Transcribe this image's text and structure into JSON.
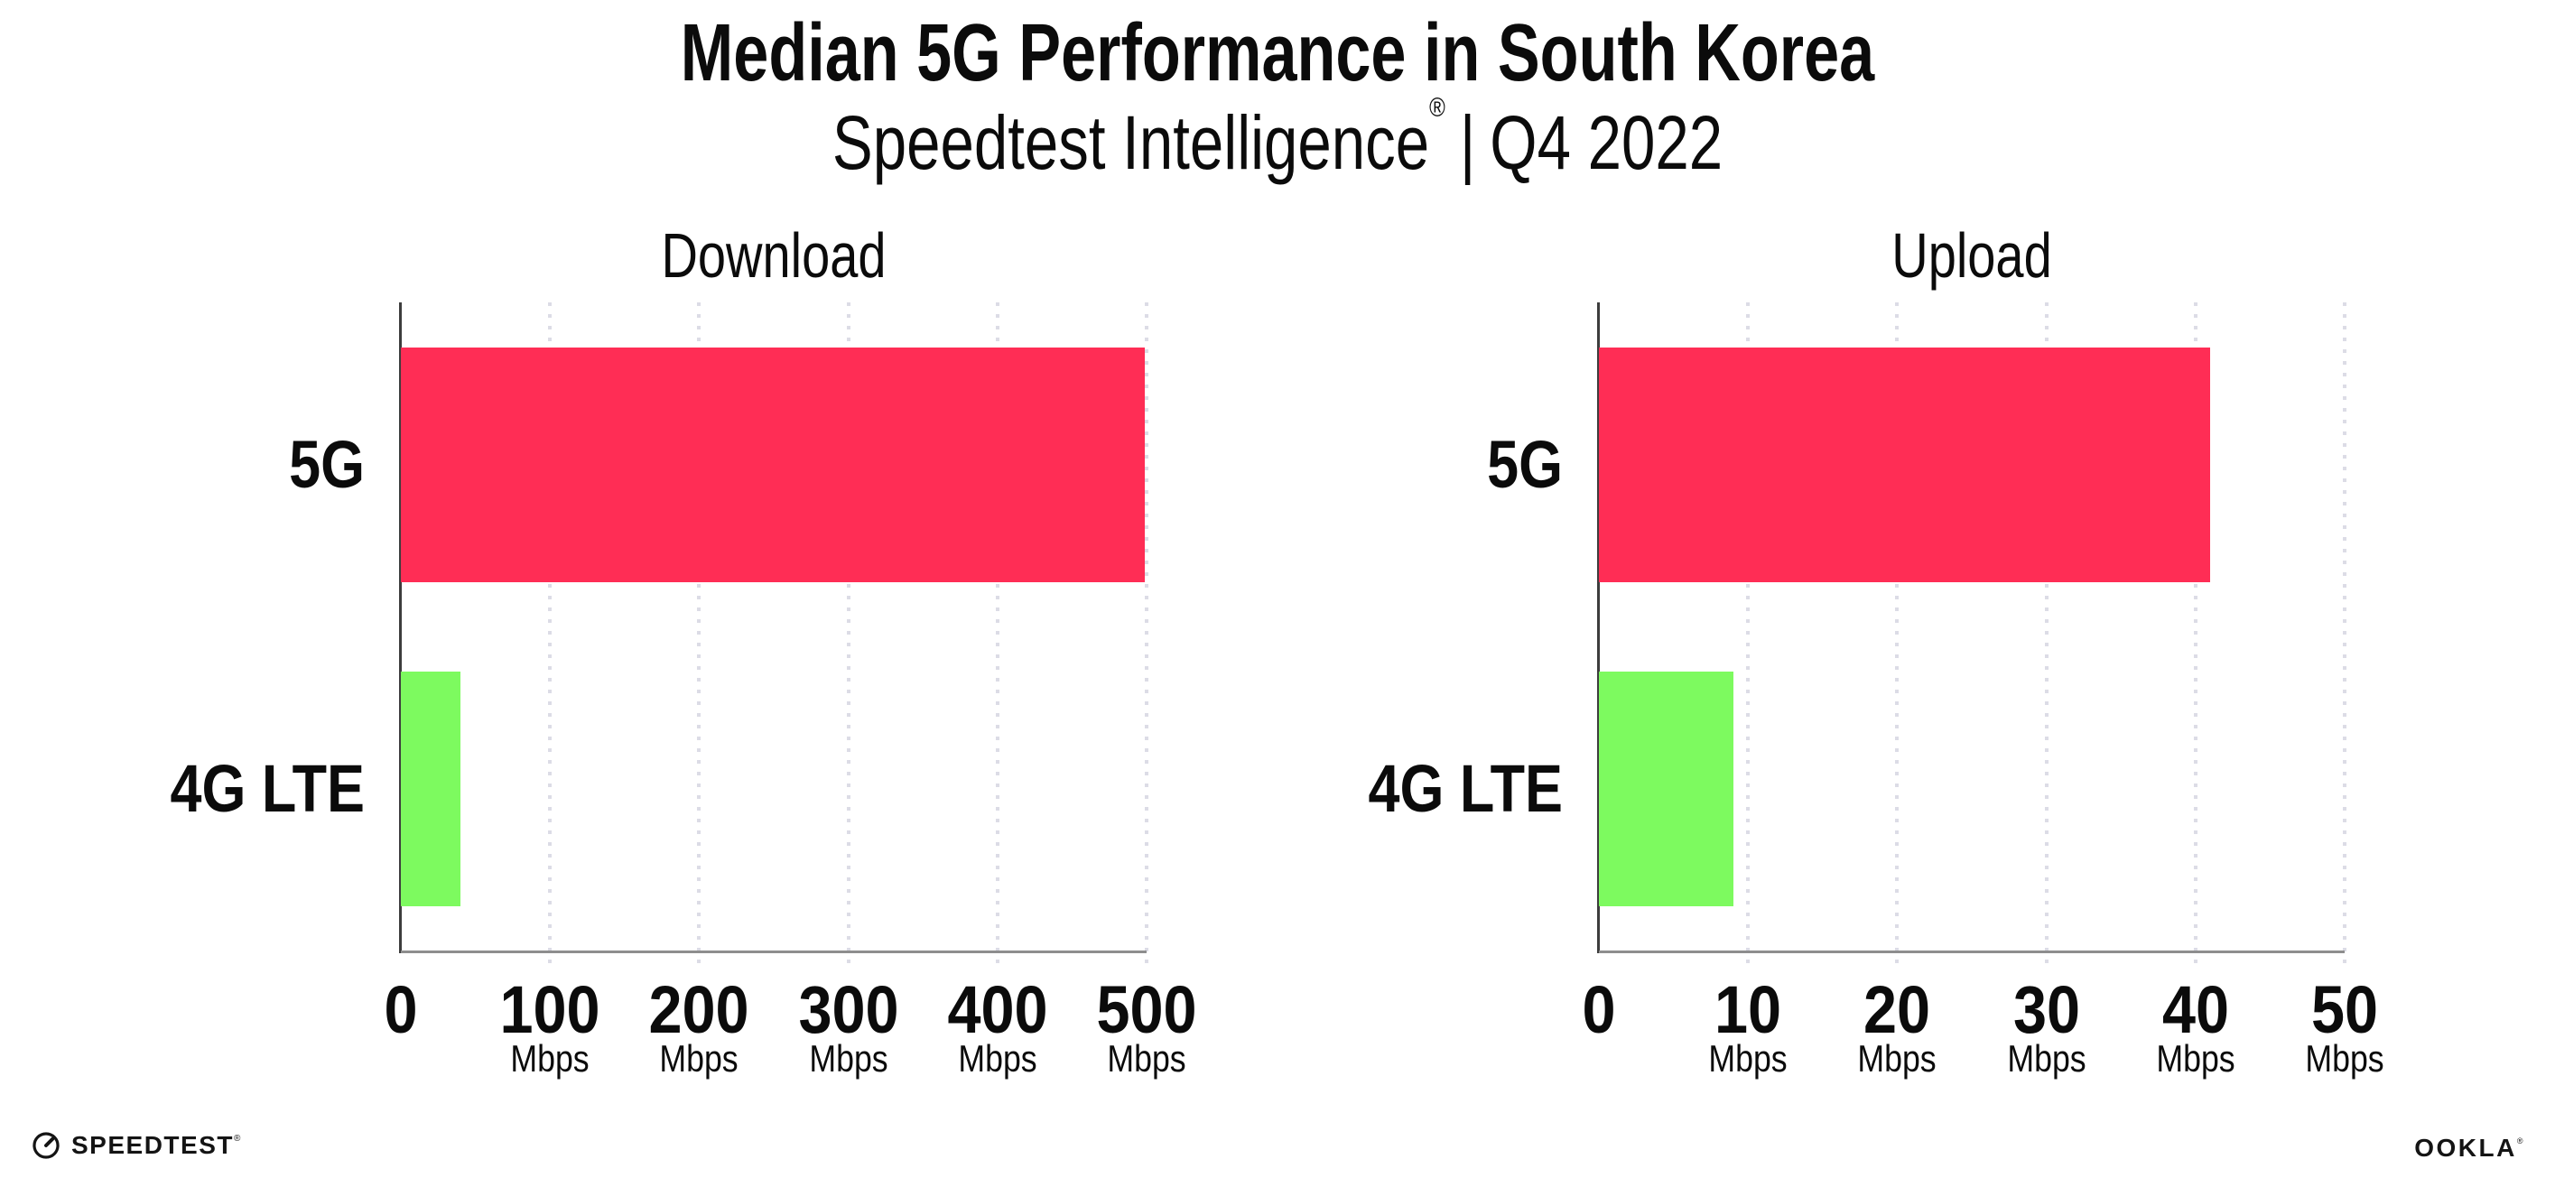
{
  "header": {
    "title": "Median 5G Performance in South Korea",
    "subtitle_brand": "Speedtest Intelligence",
    "subtitle_reg": "®",
    "subtitle_separator": "|",
    "subtitle_period": "Q4 2022"
  },
  "footer": {
    "speedtest_logo_text": "SPEEDTEST",
    "speedtest_reg": "®",
    "ookla_logo_text": "OOKLA",
    "ookla_reg": "®"
  },
  "colors": {
    "bar_5g": "#ff2d55",
    "bar_4g_lte": "#7dfa5f",
    "gridline": "#dcdce6",
    "x_axis_line": "#8e8e8e",
    "y_axis_spine": "#3d3d3d",
    "text": "#0b0b0b"
  },
  "chart_data": [
    {
      "type": "bar",
      "orientation": "horizontal",
      "title": "Download",
      "categories": [
        "5G",
        "4G LTE"
      ],
      "values": [
        499,
        40
      ],
      "unit": "Mbps",
      "tick_unit": "Mbps",
      "xlim": [
        0,
        500
      ],
      "xticks": [
        0,
        100,
        200,
        300,
        400,
        500
      ],
      "bar_colors": [
        "#ff2d55",
        "#7dfa5f"
      ],
      "grid": "vertical-dotted",
      "legend": "none"
    },
    {
      "type": "bar",
      "orientation": "horizontal",
      "title": "Upload",
      "categories": [
        "5G",
        "4G LTE"
      ],
      "values": [
        41,
        9
      ],
      "unit": "Mbps",
      "tick_unit": "Mbps",
      "xlim": [
        0,
        50
      ],
      "xticks": [
        0,
        10,
        20,
        30,
        40,
        50
      ],
      "bar_colors": [
        "#ff2d55",
        "#7dfa5f"
      ],
      "grid": "vertical-dotted",
      "legend": "none"
    }
  ]
}
